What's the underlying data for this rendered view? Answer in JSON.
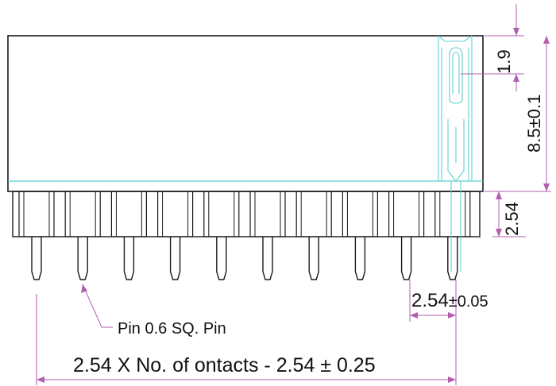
{
  "drawing": {
    "dimensions": {
      "top_offset": "1.9",
      "height": "8.5±0.1",
      "pin_base": "2.54",
      "pitch_value": "2.54",
      "pitch_tolerance": "±0.05",
      "total_length": "2.54 X No. of ontacts - 2.54 ± 0.25"
    },
    "callouts": {
      "pin": "Pin 0.6 SQ. Pin"
    },
    "pin_count": 10,
    "colors": {
      "outline": "#1a1a1a",
      "dimension": "#b05fb0",
      "section": "#5fcfd0"
    }
  }
}
